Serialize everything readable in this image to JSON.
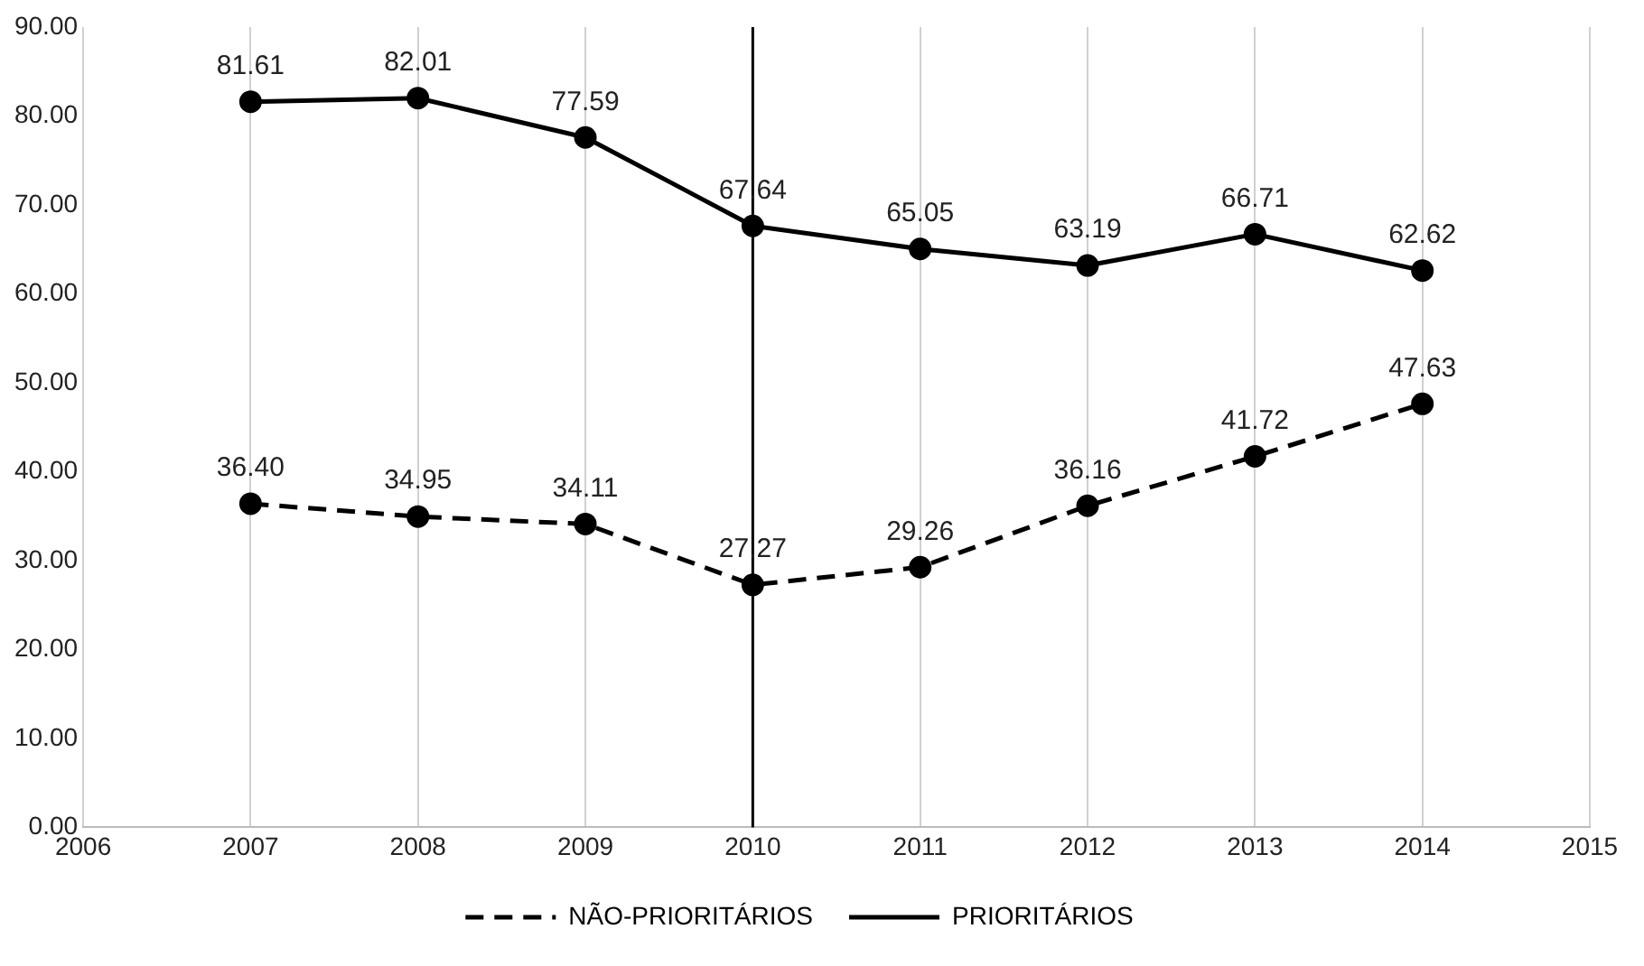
{
  "chart_data": {
    "type": "line",
    "x": [
      2007,
      2008,
      2009,
      2010,
      2011,
      2012,
      2013,
      2014
    ],
    "series": [
      {
        "name": "NÃO-PRIORITÁRIOS",
        "color": "#000000",
        "line_style": "dashed",
        "values": [
          36.4,
          34.95,
          34.11,
          27.27,
          29.26,
          36.16,
          41.72,
          47.63
        ],
        "value_labels": [
          "36.40",
          "34.95",
          "34.11",
          "27.27",
          "29.26",
          "36.16",
          "41.72",
          "47.63"
        ]
      },
      {
        "name": "PRIORITÁRIOS",
        "color": "#000000",
        "line_style": "solid",
        "values": [
          81.61,
          82.01,
          77.59,
          67.64,
          65.05,
          63.19,
          66.71,
          62.62
        ],
        "value_labels": [
          "81.61",
          "82.01",
          "77.59",
          "67.64",
          "65.05",
          "63.19",
          "66.71",
          "62.62"
        ]
      }
    ],
    "xlim": [
      2006,
      2015
    ],
    "xticks": [
      2006,
      2007,
      2008,
      2009,
      2010,
      2011,
      2012,
      2013,
      2014,
      2015
    ],
    "ylim": [
      0,
      90
    ],
    "yticks": [
      {
        "value": 0,
        "label": "0.00"
      },
      {
        "value": 10,
        "label": "10.00"
      },
      {
        "value": 20,
        "label": "20.00"
      },
      {
        "value": 30,
        "label": "30.00"
      },
      {
        "value": 40,
        "label": "40.00"
      },
      {
        "value": 50,
        "label": "50.00"
      },
      {
        "value": 60,
        "label": "60.00"
      },
      {
        "value": 70,
        "label": "70.00"
      },
      {
        "value": 80,
        "label": "80.00"
      },
      {
        "value": 90,
        "label": "90.00"
      }
    ],
    "ref_lines": [
      {
        "axis": "x",
        "value": 2010,
        "color": "#000000"
      }
    ],
    "grid": "x",
    "legend": "bottom",
    "marker": "circle"
  }
}
